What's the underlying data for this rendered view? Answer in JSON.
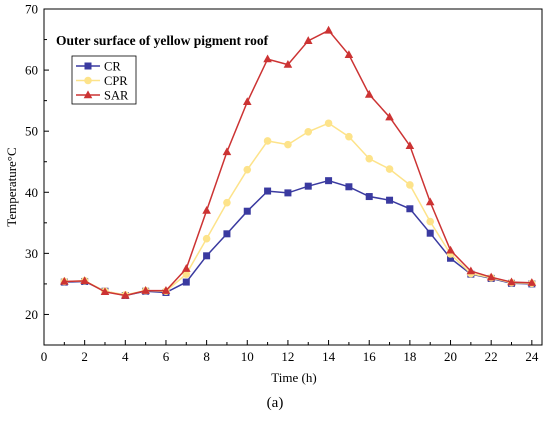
{
  "chart_data": {
    "type": "line",
    "title": "Outer surface of yellow pigment roof",
    "xlabel": "Time (h)",
    "ylabel": "Temperature",
    "ylabel_unit": "°C",
    "caption": "(a)",
    "xlim": [
      0,
      24.5
    ],
    "ylim": [
      15,
      70
    ],
    "xticks": [
      0,
      2,
      4,
      6,
      8,
      10,
      12,
      14,
      16,
      18,
      20,
      22,
      24
    ],
    "yticks": [
      20,
      30,
      40,
      50,
      60,
      70
    ],
    "grid": false,
    "legend_position": "top-left",
    "x": [
      1,
      2,
      3,
      4,
      5,
      6,
      7,
      8,
      9,
      10,
      11,
      12,
      13,
      14,
      15,
      16,
      17,
      18,
      19,
      20,
      21,
      22,
      23,
      24
    ],
    "series": [
      {
        "name": "CR",
        "color": "#3a3aa0",
        "marker": "square",
        "values": [
          25.3,
          25.4,
          23.8,
          23.1,
          23.8,
          23.6,
          25.3,
          29.6,
          33.2,
          36.9,
          40.2,
          39.9,
          41.0,
          41.9,
          40.9,
          39.3,
          38.7,
          37.3,
          33.3,
          29.2,
          26.6,
          25.9,
          25.1,
          25.0
        ]
      },
      {
        "name": "CPR",
        "color": "#fde38a",
        "marker": "circle",
        "values": [
          25.4,
          25.5,
          23.8,
          23.2,
          23.9,
          23.8,
          26.6,
          32.4,
          38.3,
          43.7,
          48.4,
          47.8,
          49.9,
          51.3,
          49.1,
          45.5,
          43.8,
          41.2,
          35.2,
          29.9,
          26.7,
          26.0,
          25.2,
          25.1
        ]
      },
      {
        "name": "SAR",
        "color": "#cc3333",
        "marker": "triangle",
        "values": [
          25.4,
          25.5,
          23.7,
          23.1,
          23.9,
          23.9,
          27.5,
          37.0,
          46.6,
          54.8,
          61.8,
          60.9,
          64.8,
          66.5,
          62.5,
          56.0,
          52.3,
          47.6,
          38.4,
          30.5,
          27.1,
          26.1,
          25.3,
          25.2
        ]
      }
    ]
  }
}
